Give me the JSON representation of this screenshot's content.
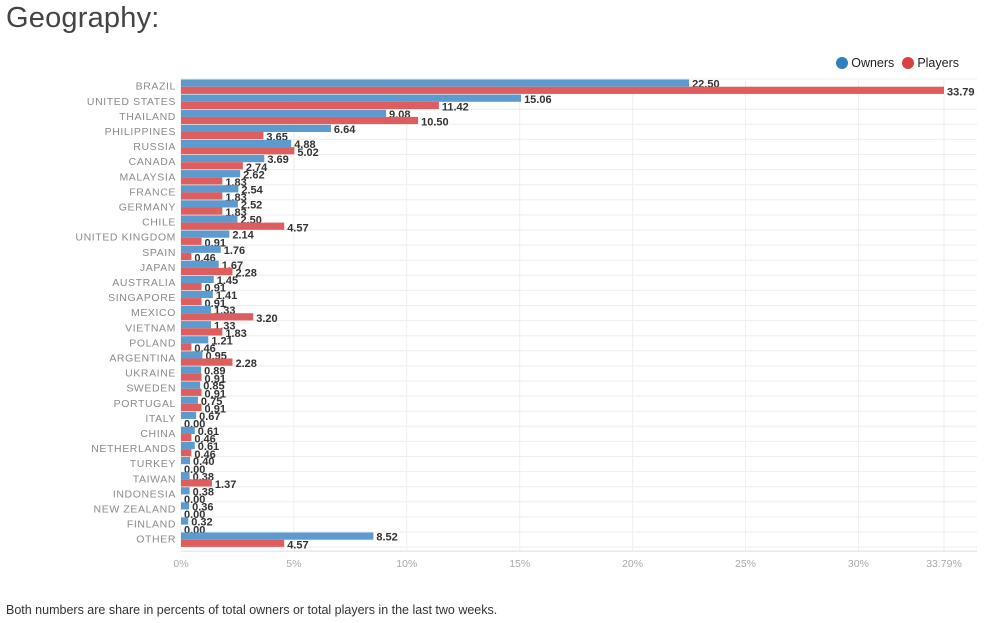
{
  "page": {
    "title": "Geography:",
    "footnote": "Both numbers are share in percents of total owners or total players in the last two weeks."
  },
  "colors": {
    "owners": "#5b9bd0",
    "players": "#e05d5d",
    "owners_legend": "#2f7fc1",
    "players_legend": "#d94040"
  },
  "chart_data": {
    "type": "bar",
    "orientation": "horizontal",
    "title": "",
    "xlabel": "",
    "ylabel": "",
    "categories": [
      "BRAZIL",
      "UNITED STATES",
      "THAILAND",
      "PHILIPPINES",
      "RUSSIA",
      "CANADA",
      "MALAYSIA",
      "FRANCE",
      "GERMANY",
      "CHILE",
      "UNITED KINGDOM",
      "SPAIN",
      "JAPAN",
      "AUSTRALIA",
      "SINGAPORE",
      "MEXICO",
      "VIETNAM",
      "POLAND",
      "ARGENTINA",
      "UKRAINE",
      "SWEDEN",
      "PORTUGAL",
      "ITALY",
      "CHINA",
      "NETHERLANDS",
      "TURKEY",
      "TAIWAN",
      "INDONESIA",
      "NEW ZEALAND",
      "FINLAND",
      "OTHER"
    ],
    "series": [
      {
        "name": "Owners",
        "values": [
          22.5,
          15.06,
          9.08,
          6.64,
          4.88,
          3.69,
          2.62,
          2.54,
          2.52,
          2.5,
          2.14,
          1.76,
          1.67,
          1.45,
          1.41,
          1.33,
          1.33,
          1.21,
          0.95,
          0.89,
          0.85,
          0.75,
          0.67,
          0.61,
          0.61,
          0.4,
          0.38,
          0.38,
          0.36,
          0.32,
          8.52
        ]
      },
      {
        "name": "Players",
        "values": [
          33.79,
          11.42,
          10.5,
          3.65,
          5.02,
          2.74,
          1.83,
          1.83,
          1.83,
          4.57,
          0.91,
          0.46,
          2.28,
          0.91,
          0.91,
          3.2,
          1.83,
          0.46,
          2.28,
          0.91,
          0.91,
          0.91,
          0.0,
          0.46,
          0.46,
          0.0,
          1.37,
          0.0,
          0.0,
          0.0,
          4.57
        ]
      }
    ],
    "value_labels": {
      "owners": [
        "22.50",
        "15.06",
        "9.08",
        "6.64",
        "4.88",
        "3.69",
        "2.62",
        "2.54",
        "2.52",
        "2.50",
        "2.14",
        "1.76",
        "1.67",
        "1.45",
        "1.41",
        "1.33",
        "1.33",
        "1.21",
        "0.95",
        "0.89",
        "0.85",
        "0.75",
        "0.67",
        "0.61",
        "0.61",
        "0.40",
        "0.38",
        "0.38",
        "0.36",
        "0.32",
        "8.52"
      ],
      "players": [
        "33.79",
        "11.42",
        "10.50",
        "3.65",
        "5.02",
        "2.74",
        "1.83",
        "1.83",
        "1.83",
        "4.57",
        "0.91",
        "0.46",
        "2.28",
        "0.91",
        "0.91",
        "3.20",
        "1.83",
        "0.46",
        "2.28",
        "0.91",
        "0.91",
        "0.91",
        "0.00",
        "0.46",
        "0.46",
        "0.00",
        "1.37",
        "0.00",
        "0.00",
        "0.00",
        "4.57"
      ]
    },
    "x_ticks": [
      {
        "value": 0,
        "label": "0%"
      },
      {
        "value": 5,
        "label": "5%"
      },
      {
        "value": 10,
        "label": "10%"
      },
      {
        "value": 15,
        "label": "15%"
      },
      {
        "value": 20,
        "label": "20%"
      },
      {
        "value": 25,
        "label": "25%"
      },
      {
        "value": 30,
        "label": "30%"
      },
      {
        "value": 33.79,
        "label": "33.79%"
      }
    ],
    "xlim": [
      0,
      33.79
    ],
    "grid": true,
    "legend_position": "top-right"
  }
}
